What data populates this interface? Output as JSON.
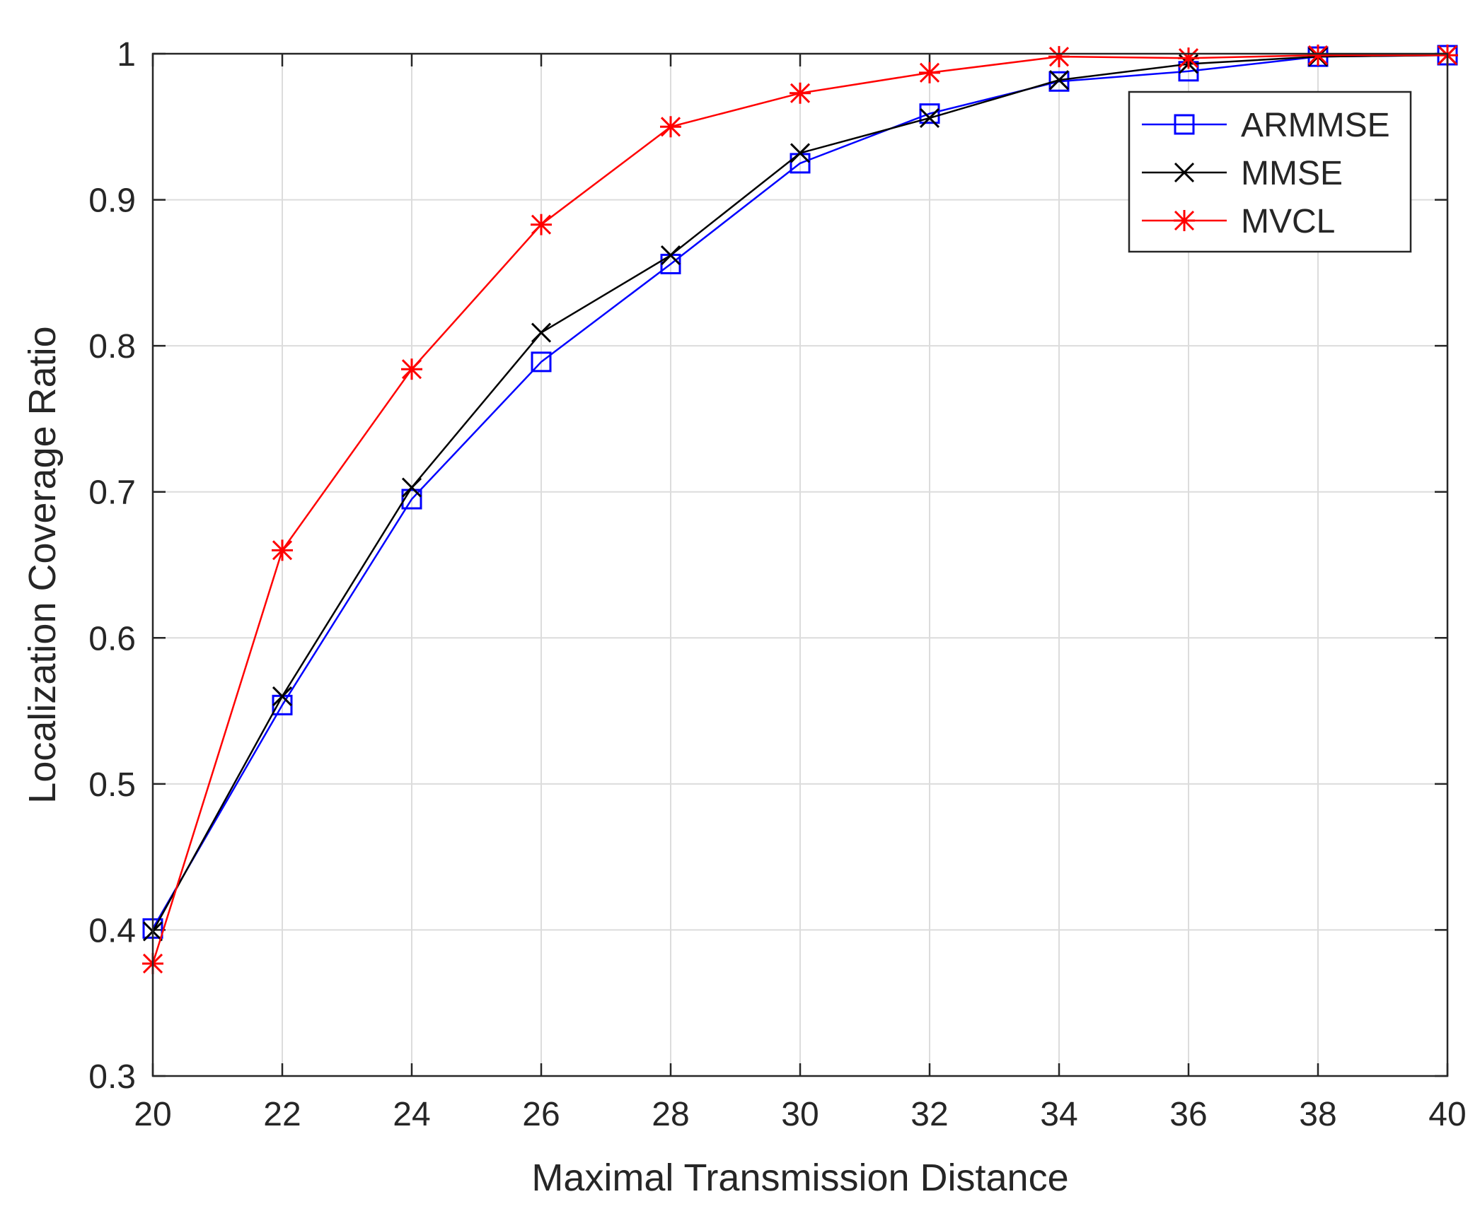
{
  "chart_data": {
    "type": "line",
    "title": "",
    "xlabel": "Maximal Transmission Distance",
    "ylabel": "Localization Coverage Ratio",
    "xlim": [
      20,
      40
    ],
    "ylim": [
      0.3,
      1
    ],
    "x": [
      20,
      22,
      24,
      26,
      28,
      30,
      32,
      34,
      36,
      38,
      40
    ],
    "xticks": [
      "20",
      "22",
      "24",
      "26",
      "28",
      "30",
      "32",
      "34",
      "36",
      "38",
      "40"
    ],
    "yticks": [
      {
        "value": 0.3,
        "label": "0.3"
      },
      {
        "value": 0.4,
        "label": "0.4"
      },
      {
        "value": 0.5,
        "label": "0.5"
      },
      {
        "value": 0.6,
        "label": "0.6"
      },
      {
        "value": 0.7,
        "label": "0.7"
      },
      {
        "value": 0.8,
        "label": "0.8"
      },
      {
        "value": 0.9,
        "label": "0.9"
      },
      {
        "value": 1.0,
        "label": "1"
      }
    ],
    "grid": true,
    "legend_position": "top-right",
    "series": [
      {
        "name": "ARMMSE",
        "color": "#0000ff",
        "marker": "square",
        "values": [
          0.401,
          0.554,
          0.695,
          0.789,
          0.856,
          0.925,
          0.959,
          0.981,
          0.988,
          0.998,
          0.999
        ]
      },
      {
        "name": "MMSE",
        "color": "#000000",
        "marker": "x",
        "values": [
          0.399,
          0.56,
          0.703,
          0.809,
          0.862,
          0.932,
          0.956,
          0.982,
          0.993,
          0.998,
          0.999
        ]
      },
      {
        "name": "MVCL",
        "color": "#ff0000",
        "marker": "asterisk",
        "values": [
          0.377,
          0.66,
          0.784,
          0.883,
          0.95,
          0.973,
          0.987,
          0.998,
          0.997,
          0.999,
          0.999
        ]
      }
    ]
  }
}
